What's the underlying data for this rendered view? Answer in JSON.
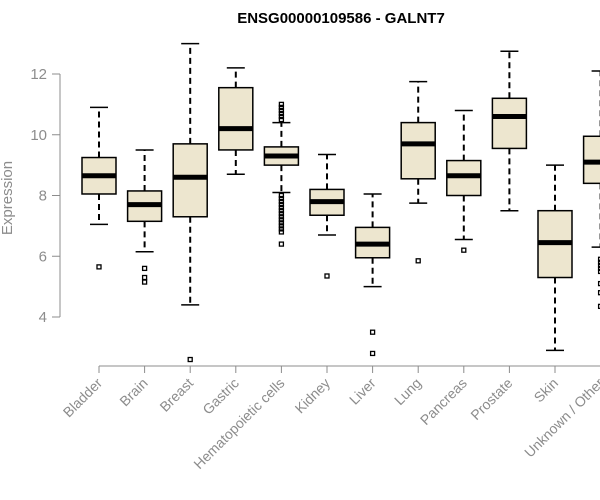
{
  "chart_data": {
    "type": "boxplot",
    "title": "ENSG00000109586 - GALNT7",
    "xlabel": "",
    "ylabel": "Expression",
    "ylim": [
      2.5,
      13.2
    ],
    "yticks": [
      4,
      6,
      8,
      10,
      12
    ],
    "box_fill": "#ede6cf",
    "line_color": "#000000",
    "axis_color": "#8c8c8c",
    "categories": [
      "Bladder",
      "Brain",
      "Breast",
      "Gastric",
      "Hematopoietic cells",
      "Kidney",
      "Liver",
      "Lung",
      "Pancreas",
      "Prostate",
      "Skin",
      "Unknown / Other"
    ],
    "boxes": [
      {
        "name": "Bladder",
        "whisker_low": 7.05,
        "q1": 8.05,
        "median": 8.65,
        "q3": 9.25,
        "whisker_high": 10.9,
        "outliers": [
          5.65
        ]
      },
      {
        "name": "Brain",
        "whisker_low": 6.15,
        "q1": 7.15,
        "median": 7.7,
        "q3": 8.15,
        "whisker_high": 9.5,
        "outliers": [
          5.6,
          5.3,
          5.15
        ]
      },
      {
        "name": "Breast",
        "whisker_low": 4.4,
        "q1": 7.3,
        "median": 8.6,
        "q3": 9.7,
        "whisker_high": 13.0,
        "outliers": [
          2.6
        ]
      },
      {
        "name": "Gastric",
        "whisker_low": 8.7,
        "q1": 9.5,
        "median": 10.2,
        "q3": 11.55,
        "whisker_high": 12.2,
        "outliers": []
      },
      {
        "name": "Hematopoietic cells",
        "whisker_low": 8.1,
        "q1": 9.0,
        "median": 9.3,
        "q3": 9.6,
        "whisker_high": 10.4,
        "outliers": [
          11.0,
          10.9,
          10.8,
          10.7,
          10.6,
          10.5,
          8.0,
          7.9,
          7.8,
          7.7,
          7.6,
          7.5,
          7.4,
          7.3,
          7.2,
          7.1,
          7.0,
          6.9,
          6.8,
          6.4
        ]
      },
      {
        "name": "Kidney",
        "whisker_low": 6.7,
        "q1": 7.35,
        "median": 7.8,
        "q3": 8.2,
        "whisker_high": 9.35,
        "outliers": [
          5.35
        ]
      },
      {
        "name": "Liver",
        "whisker_low": 5.0,
        "q1": 5.95,
        "median": 6.4,
        "q3": 6.95,
        "whisker_high": 8.05,
        "outliers": [
          3.5,
          2.8
        ]
      },
      {
        "name": "Lung",
        "whisker_low": 7.75,
        "q1": 8.55,
        "median": 9.7,
        "q3": 10.4,
        "whisker_high": 11.75,
        "outliers": [
          5.85
        ]
      },
      {
        "name": "Pancreas",
        "whisker_low": 6.55,
        "q1": 8.0,
        "median": 8.65,
        "q3": 9.15,
        "whisker_high": 10.8,
        "outliers": [
          6.2
        ]
      },
      {
        "name": "Prostate",
        "whisker_low": 7.5,
        "q1": 9.55,
        "median": 10.6,
        "q3": 11.2,
        "whisker_high": 12.75,
        "outliers": []
      },
      {
        "name": "Skin",
        "whisker_low": 2.9,
        "q1": 5.3,
        "median": 6.45,
        "q3": 7.5,
        "whisker_high": 9.0,
        "outliers": []
      },
      {
        "name": "Unknown / Other",
        "whisker_low": 6.3,
        "q1": 8.4,
        "median": 9.1,
        "q3": 9.95,
        "whisker_high": 12.1,
        "outliers": [
          5.9,
          5.8,
          5.7,
          5.6,
          5.5,
          5.1,
          4.8,
          4.35
        ]
      }
    ]
  }
}
